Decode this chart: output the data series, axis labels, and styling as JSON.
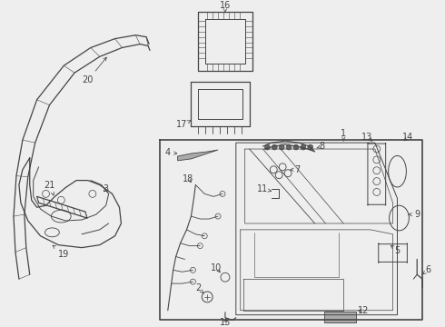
{
  "bg_color": "#eeeeee",
  "line_color": "#444444",
  "lw": 0.7,
  "fig_w": 4.9,
  "fig_h": 3.6,
  "dpi": 100,
  "xmin": 0,
  "xmax": 490,
  "ymin": 0,
  "ymax": 360
}
